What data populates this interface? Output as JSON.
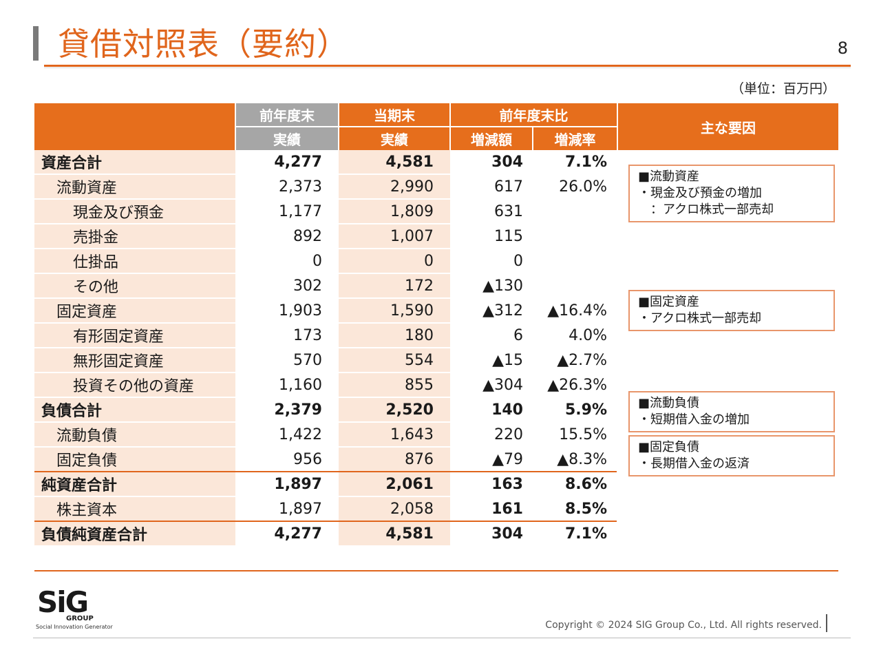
{
  "title": "貸借対照表（要約）",
  "page_number": "8",
  "unit": "（単位：百万円）",
  "headers": {
    "prev": "前年度末",
    "prev_sub": "実績",
    "curr": "当期末",
    "curr_sub": "実績",
    "compare": "前年度末比",
    "diff": "増減額",
    "rate": "増減率",
    "factors": "主な要因"
  },
  "rows": [
    {
      "label": "資産合計",
      "prev": "4,277",
      "curr": "4,581",
      "diff": "304",
      "rate": "7.1%"
    },
    {
      "label": "流動資産",
      "prev": "2,373",
      "curr": "2,990",
      "diff": "617",
      "rate": "26.0%"
    },
    {
      "label": "現金及び預金",
      "prev": "1,177",
      "curr": "1,809",
      "diff": "631",
      "rate": ""
    },
    {
      "label": "売掛金",
      "prev": "892",
      "curr": "1,007",
      "diff": "115",
      "rate": ""
    },
    {
      "label": "仕掛品",
      "prev": "0",
      "curr": "0",
      "diff": "0",
      "rate": ""
    },
    {
      "label": "その他",
      "prev": "302",
      "curr": "172",
      "diff": "▲130",
      "rate": ""
    },
    {
      "label": "固定資産",
      "prev": "1,903",
      "curr": "1,590",
      "diff": "▲312",
      "rate": "▲16.4%"
    },
    {
      "label": "有形固定資産",
      "prev": "173",
      "curr": "180",
      "diff": "6",
      "rate": "4.0%"
    },
    {
      "label": "無形固定資産",
      "prev": "570",
      "curr": "554",
      "diff": "▲15",
      "rate": "▲2.7%"
    },
    {
      "label": "投資その他の資産",
      "prev": "1,160",
      "curr": "855",
      "diff": "▲304",
      "rate": "▲26.3%"
    },
    {
      "label": "負債合計",
      "prev": "2,379",
      "curr": "2,520",
      "diff": "140",
      "rate": "5.9%"
    },
    {
      "label": "流動負債",
      "prev": "1,422",
      "curr": "1,643",
      "diff": "220",
      "rate": "15.5%"
    },
    {
      "label": "固定負債",
      "prev": "956",
      "curr": "876",
      "diff": "▲79",
      "rate": "▲8.3%"
    },
    {
      "label": "純資産合計",
      "prev": "1,897",
      "curr": "2,061",
      "diff": "163",
      "rate": "8.6%"
    },
    {
      "label": "株主資本",
      "prev": "1,897",
      "curr": "2,058",
      "diff": "161",
      "rate": "8.5%"
    },
    {
      "label": "負債純資産合計",
      "prev": "4,277",
      "curr": "4,581",
      "diff": "304",
      "rate": "7.1%"
    }
  ],
  "factors": [
    {
      "head": "■流動資産",
      "lines": [
        "・現金及び預金の増加",
        "　：アクロ株式一部売却"
      ]
    },
    {
      "head": "■固定資産",
      "lines": [
        "・アクロ株式一部売却"
      ]
    },
    {
      "head": "■流動負債",
      "lines": [
        "・短期借入金の増加"
      ]
    },
    {
      "head": "■固定負債",
      "lines": [
        "・長期借入金の返済"
      ]
    }
  ],
  "logo": {
    "mark": "SiG",
    "group": "GROUP",
    "tagline": "Social Innovation Generator"
  },
  "copyright": "Copyright © 2024  SIG Group Co., Ltd. All rights reserved."
}
